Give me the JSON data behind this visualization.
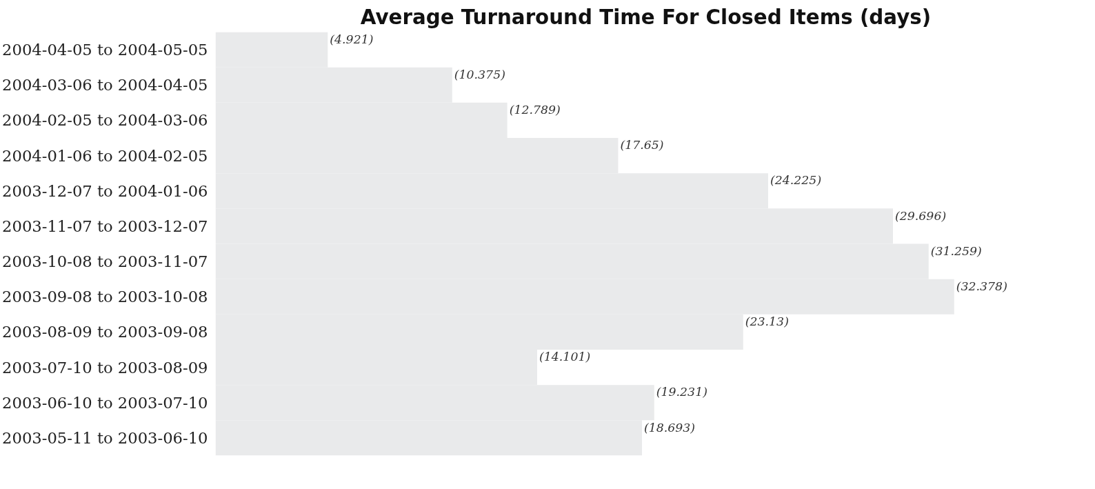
{
  "chart_data": {
    "type": "bar",
    "orientation": "horizontal",
    "title": "Average Turnaround Time For Closed Items (days)",
    "categories": [
      "2004-04-05 to 2004-05-05",
      "2004-03-06 to 2004-04-05",
      "2004-02-05 to 2004-03-06",
      "2004-01-06 to 2004-02-05",
      "2003-12-07 to 2004-01-06",
      "2003-11-07 to 2003-12-07",
      "2003-10-08 to 2003-11-07",
      "2003-09-08 to 2003-10-08",
      "2003-08-09 to 2003-09-08",
      "2003-07-10 to 2003-08-09",
      "2003-06-10 to 2003-07-10",
      "2003-05-11 to 2003-06-10"
    ],
    "values": [
      4.921,
      10.375,
      12.789,
      17.65,
      24.225,
      29.696,
      31.259,
      32.378,
      23.13,
      14.101,
      19.231,
      18.693
    ],
    "value_labels": [
      "(4.921)",
      "(10.375)",
      "(12.789)",
      "(17.65)",
      "(24.225)",
      "(29.696)",
      "(31.259)",
      "(32.378)",
      "(23.13)",
      "(14.101)",
      "(19.231)",
      "(18.693)"
    ],
    "color": "#e9eaeb",
    "grid": false
  }
}
